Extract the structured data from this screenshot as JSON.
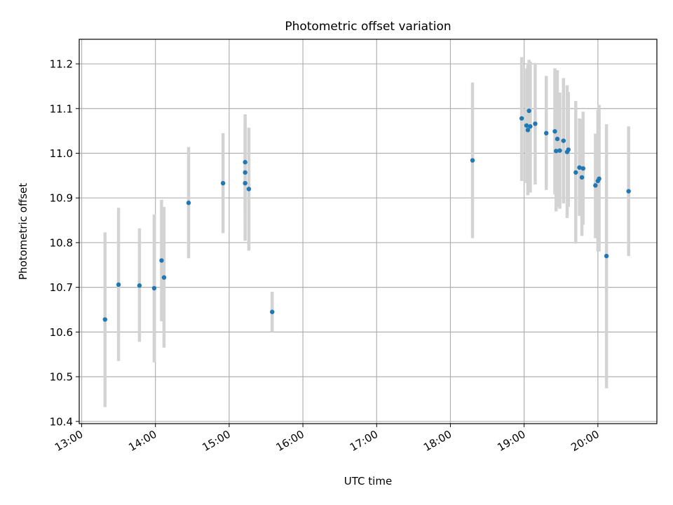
{
  "chart_data": {
    "type": "scatter",
    "title": "Photometric offset variation",
    "xlabel": "UTC time",
    "ylabel": "Photometric offset",
    "x_ticks": [
      "13:00",
      "14:00",
      "15:00",
      "16:00",
      "17:00",
      "18:00",
      "19:00",
      "20:00"
    ],
    "y_ticks": [
      "10.4",
      "10.5",
      "10.6",
      "10.7",
      "10.8",
      "10.9",
      "11.0",
      "11.1",
      "11.2"
    ],
    "xlim": [
      "12:58",
      "20:48"
    ],
    "ylim": [
      10.395,
      11.255
    ],
    "grid": true,
    "point_color": "#1f77b4",
    "errorbar_color": "#d3d3d3",
    "series": [
      {
        "points": [
          {
            "t": "13:19",
            "y": 10.628,
            "lo": 10.432,
            "hi": 10.823
          },
          {
            "t": "13:30",
            "y": 10.706,
            "lo": 10.535,
            "hi": 10.878
          },
          {
            "t": "13:47",
            "y": 10.704,
            "lo": 10.578,
            "hi": 10.832
          },
          {
            "t": "13:59",
            "y": 10.698,
            "lo": 10.532,
            "hi": 10.863
          },
          {
            "t": "14:05",
            "y": 10.76,
            "lo": 10.624,
            "hi": 10.896
          },
          {
            "t": "14:07",
            "y": 10.722,
            "lo": 10.565,
            "hi": 10.88
          },
          {
            "t": "14:27",
            "y": 10.889,
            "lo": 10.765,
            "hi": 11.014
          },
          {
            "t": "14:55",
            "y": 10.933,
            "lo": 10.821,
            "hi": 11.045
          },
          {
            "t": "15:13",
            "y": 10.98,
            "lo": 10.872,
            "hi": 11.087
          },
          {
            "t": "15:13",
            "y": 10.957,
            "lo": 10.842,
            "hi": 11.072
          },
          {
            "t": "15:13",
            "y": 10.933,
            "lo": 10.804,
            "hi": 11.062
          },
          {
            "t": "15:16",
            "y": 10.92,
            "lo": 10.782,
            "hi": 11.057
          },
          {
            "t": "15:35",
            "y": 10.645,
            "lo": 10.6,
            "hi": 10.69
          },
          {
            "t": "18:18",
            "y": 10.984,
            "lo": 10.81,
            "hi": 11.158
          },
          {
            "t": "18:58",
            "y": 11.078,
            "lo": 10.938,
            "hi": 11.215
          },
          {
            "t": "19:02",
            "y": 11.062,
            "lo": 10.933,
            "hi": 11.19
          },
          {
            "t": "19:03",
            "y": 11.052,
            "lo": 10.906,
            "hi": 11.198
          },
          {
            "t": "19:04",
            "y": 11.095,
            "lo": 10.98,
            "hi": 11.209
          },
          {
            "t": "19:05",
            "y": 11.06,
            "lo": 10.912,
            "hi": 11.205
          },
          {
            "t": "19:09",
            "y": 11.066,
            "lo": 10.93,
            "hi": 11.202
          },
          {
            "t": "19:18",
            "y": 11.045,
            "lo": 10.918,
            "hi": 11.173
          },
          {
            "t": "19:25",
            "y": 11.049,
            "lo": 10.908,
            "hi": 11.19
          },
          {
            "t": "19:26",
            "y": 11.005,
            "lo": 10.87,
            "hi": 11.14
          },
          {
            "t": "19:27",
            "y": 11.032,
            "lo": 10.88,
            "hi": 11.186
          },
          {
            "t": "19:29",
            "y": 11.006,
            "lo": 10.876,
            "hi": 11.136
          },
          {
            "t": "19:32",
            "y": 11.028,
            "lo": 10.888,
            "hi": 11.168
          },
          {
            "t": "19:35",
            "y": 11.003,
            "lo": 10.855,
            "hi": 11.152
          },
          {
            "t": "19:36",
            "y": 11.008,
            "lo": 10.88,
            "hi": 11.137
          },
          {
            "t": "19:42",
            "y": 10.957,
            "lo": 10.798,
            "hi": 11.117
          },
          {
            "t": "19:45",
            "y": 10.968,
            "lo": 10.86,
            "hi": 11.078
          },
          {
            "t": "19:47",
            "y": 10.946,
            "lo": 10.815,
            "hi": 11.076
          },
          {
            "t": "19:48",
            "y": 10.966,
            "lo": 10.84,
            "hi": 11.093
          },
          {
            "t": "19:58",
            "y": 10.928,
            "lo": 10.81,
            "hi": 11.044
          },
          {
            "t": "20:00",
            "y": 10.938,
            "lo": 10.78,
            "hi": 11.097
          },
          {
            "t": "20:01",
            "y": 10.943,
            "lo": 10.78,
            "hi": 11.108
          },
          {
            "t": "20:07",
            "y": 10.77,
            "lo": 10.474,
            "hi": 11.065
          },
          {
            "t": "20:25",
            "y": 10.915,
            "lo": 10.77,
            "hi": 11.06
          }
        ]
      }
    ]
  }
}
